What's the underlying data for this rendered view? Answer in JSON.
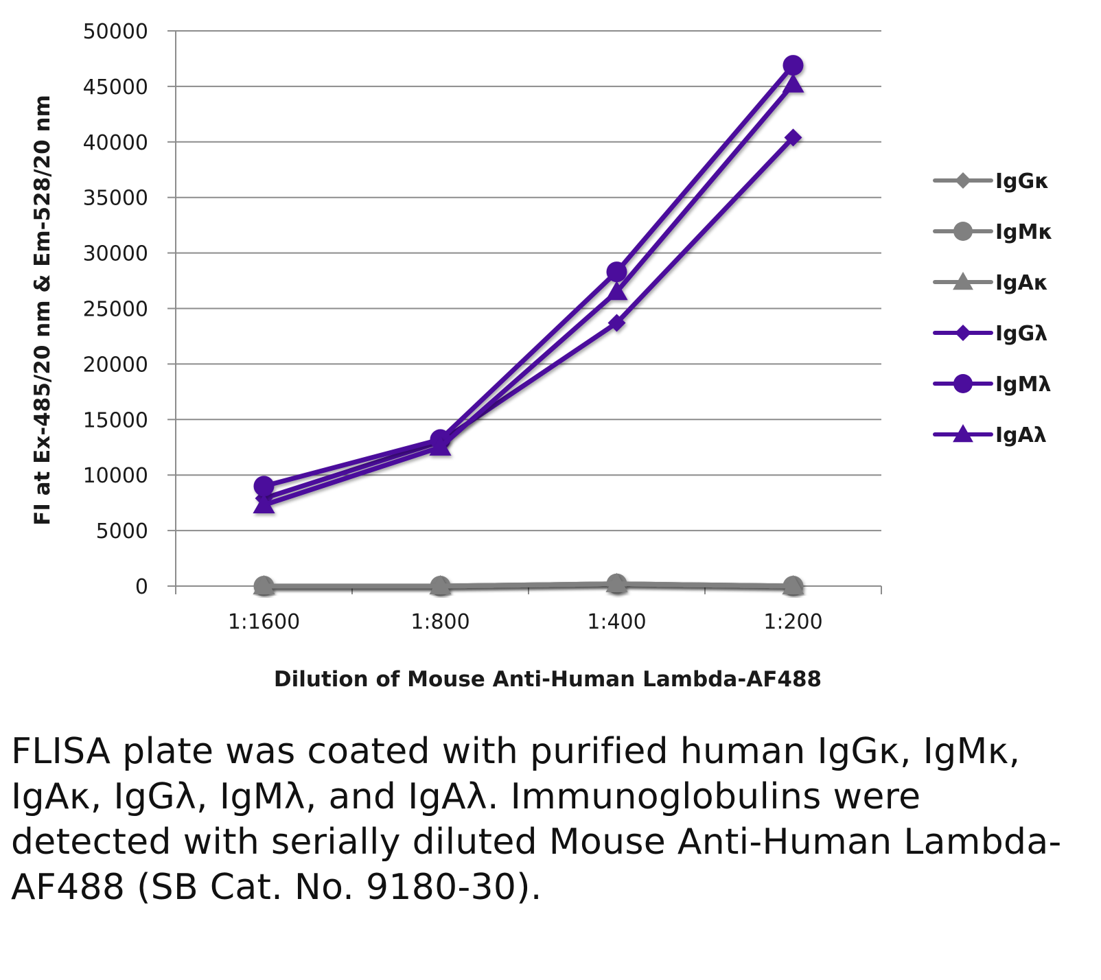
{
  "chart_data": {
    "type": "line",
    "title": "",
    "xlabel": "Dilution of Mouse Anti-Human Lambda-AF488",
    "ylabel": "FI at Ex-485/20 nm & Em-528/20 nm",
    "categories": [
      "1:1600",
      "1:800",
      "1:400",
      "1:200"
    ],
    "ylim": [
      0,
      50000
    ],
    "yticks": [
      "0",
      "5000",
      "10000",
      "15000",
      "20000",
      "25000",
      "30000",
      "35000",
      "40000",
      "45000",
      "50000"
    ],
    "grid": "horizontal",
    "legend_position": "right",
    "series": [
      {
        "name": "IgGκ",
        "marker": "diamond",
        "color": "#808080",
        "values": [
          0,
          0,
          200,
          0
        ]
      },
      {
        "name": "IgMκ",
        "marker": "circle",
        "color": "#808080",
        "values": [
          0,
          0,
          200,
          0
        ]
      },
      {
        "name": "IgAκ",
        "marker": "triangle",
        "color": "#808080",
        "values": [
          0,
          0,
          200,
          0
        ]
      },
      {
        "name": "IgGλ",
        "marker": "diamond",
        "color": "#4b0d9c",
        "values": [
          7900,
          13000,
          23700,
          40400
        ]
      },
      {
        "name": "IgMλ",
        "marker": "circle",
        "color": "#4b0d9c",
        "values": [
          9000,
          13200,
          28300,
          46900
        ]
      },
      {
        "name": "IgAλ",
        "marker": "triangle",
        "color": "#4b0d9c",
        "values": [
          7300,
          12500,
          26500,
          45200
        ]
      }
    ]
  },
  "caption": "FLISA plate was coated with purified human IgGκ, IgMκ, IgAκ, IgGλ, IgMλ, and IgAλ. Immunoglobulins were detected with serially diluted Mouse Anti-Human Lambda-AF488 (SB Cat. No. 9180-30)."
}
